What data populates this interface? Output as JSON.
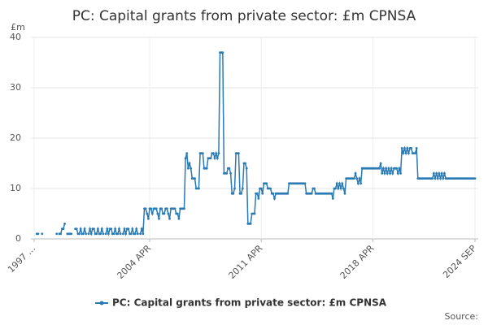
{
  "chart_data": {
    "type": "line",
    "title": "PC: Capital grants from private sector: £m CPNSA",
    "y_unit": "£m",
    "source": "Source:",
    "categories": [
      "1997 …",
      null,
      null,
      null,
      null,
      null,
      null,
      null,
      null,
      null,
      null,
      null,
      null,
      null,
      null,
      null,
      null,
      null,
      null,
      null,
      null,
      null,
      null,
      null,
      null,
      null,
      null,
      null,
      null,
      null,
      null,
      null,
      null,
      null,
      null,
      null,
      null,
      null,
      null,
      null,
      null,
      null,
      null,
      null,
      null,
      null,
      null,
      null,
      null,
      null,
      null,
      null,
      null,
      null,
      null,
      null,
      null,
      null,
      null,
      null,
      null,
      null,
      null,
      null,
      null,
      null,
      null,
      null,
      null,
      null,
      null,
      null,
      null,
      null,
      null,
      null,
      null,
      null,
      null,
      null,
      null,
      null,
      null,
      null,
      null,
      null,
      null,
      "2004 APR",
      null,
      null,
      null,
      null,
      null,
      null,
      null,
      null,
      null,
      null,
      null,
      null,
      null,
      null,
      null,
      null,
      null,
      null,
      null,
      null,
      null,
      null,
      null,
      null,
      null,
      null,
      null,
      null,
      null,
      null,
      null,
      null,
      null,
      null,
      null,
      null,
      null,
      null,
      null,
      null,
      null,
      null,
      null,
      null,
      null,
      null,
      null,
      null,
      null,
      null,
      null,
      null,
      null,
      null,
      null,
      null,
      null,
      null,
      null,
      null,
      null,
      null,
      null,
      null,
      null,
      null,
      null,
      null,
      null,
      null,
      null,
      null,
      null,
      null,
      null,
      null,
      null,
      null,
      null,
      null,
      null,
      null,
      null,
      "2011 APR",
      null,
      null,
      null,
      null,
      null,
      null,
      null,
      null,
      null,
      null,
      null,
      null,
      null,
      null,
      null,
      null,
      null,
      null,
      null,
      null,
      null,
      null,
      null,
      null,
      null,
      null,
      null,
      null,
      null,
      null,
      null,
      null,
      null,
      null,
      null,
      null,
      null,
      null,
      null,
      null,
      null,
      null,
      null,
      null,
      null,
      null,
      null,
      null,
      null,
      null,
      null,
      null,
      null,
      null,
      null,
      null,
      null,
      null,
      null,
      null,
      null,
      null,
      null,
      null,
      null,
      null,
      null,
      null,
      null,
      null,
      null,
      null,
      null,
      null,
      null,
      null,
      null,
      null,
      null,
      null,
      null,
      null,
      null,
      "2018 APR",
      null,
      null,
      null,
      null,
      null,
      null,
      null,
      null,
      null,
      null,
      null,
      null,
      null,
      null,
      null,
      null,
      null,
      null,
      null,
      null,
      null,
      null,
      null,
      null,
      null,
      null,
      null,
      null,
      null,
      null,
      null,
      null,
      null,
      null,
      null,
      null,
      null,
      null,
      null,
      null,
      null,
      null,
      null,
      null,
      null,
      null,
      null,
      null,
      null,
      null,
      null,
      null,
      null,
      null,
      null,
      null,
      null,
      null,
      null,
      null,
      null,
      null,
      null,
      null,
      null,
      null,
      null,
      null,
      null,
      null,
      null,
      null,
      null,
      null,
      null,
      null,
      "2024 SEP"
    ],
    "series": [
      {
        "name": "PC: Capital grants from private sector: £m CPNSA",
        "color": "#2a7ab4",
        "values": [
          null,
          null,
          1,
          1,
          null,
          null,
          1,
          null,
          null,
          null,
          null,
          null,
          null,
          null,
          null,
          null,
          null,
          1,
          null,
          1,
          1,
          2,
          2,
          3,
          null,
          1,
          1,
          1,
          1,
          null,
          null,
          2,
          2,
          1,
          1,
          2,
          1,
          1,
          2,
          1,
          null,
          1,
          2,
          1,
          2,
          2,
          1,
          1,
          2,
          1,
          1,
          2,
          1,
          null,
          1,
          2,
          1,
          2,
          2,
          1,
          1,
          2,
          1,
          1,
          2,
          1,
          null,
          1,
          2,
          1,
          2,
          2,
          1,
          1,
          2,
          1,
          1,
          2,
          1,
          null,
          1,
          2,
          1,
          6,
          6,
          5,
          4,
          6,
          6,
          5,
          6,
          6,
          6,
          5,
          4,
          6,
          6,
          5,
          5,
          6,
          6,
          5,
          4,
          6,
          6,
          6,
          6,
          5,
          5,
          4,
          6,
          6,
          6,
          6,
          16,
          17,
          14,
          15,
          14,
          12,
          12,
          12,
          10,
          10,
          10,
          17,
          17,
          17,
          14,
          14,
          14,
          16,
          16,
          16,
          17,
          17,
          16,
          17,
          16,
          17,
          37,
          37,
          37,
          13,
          13,
          13,
          14,
          14,
          13,
          9,
          9,
          10,
          17,
          17,
          17,
          9,
          9,
          10,
          15,
          15,
          14,
          3,
          3,
          3,
          5,
          5,
          5,
          9,
          9,
          8,
          10,
          10,
          9,
          11,
          11,
          11,
          10,
          10,
          10,
          9,
          9,
          8,
          9,
          9,
          9,
          9,
          9,
          9,
          9,
          9,
          9,
          9,
          11,
          11,
          11,
          11,
          11,
          11,
          11,
          11,
          11,
          11,
          11,
          11,
          11,
          9,
          9,
          9,
          9,
          9,
          10,
          10,
          9,
          9,
          9,
          9,
          9,
          9,
          9,
          9,
          9,
          9,
          9,
          9,
          9,
          8,
          10,
          10,
          11,
          10,
          11,
          10,
          11,
          10,
          9,
          12,
          12,
          12,
          12,
          12,
          12,
          12,
          13,
          12,
          11,
          12,
          11,
          14,
          14,
          14,
          14,
          14,
          14,
          14,
          14,
          14,
          14,
          14,
          14,
          14,
          14,
          15,
          13,
          14,
          13,
          14,
          13,
          14,
          13,
          14,
          13,
          14,
          14,
          14,
          13,
          14,
          13,
          18,
          17,
          18,
          17,
          18,
          17,
          18,
          18,
          17,
          17,
          17,
          18,
          12,
          12,
          12,
          12,
          12,
          12,
          12,
          12,
          12,
          12,
          12,
          12,
          13,
          12,
          13,
          12,
          13,
          12,
          13,
          12,
          13,
          12,
          12,
          12,
          12,
          12,
          12,
          12,
          12,
          12,
          12,
          12,
          12,
          12,
          12,
          12,
          12,
          12,
          12,
          12,
          12,
          12,
          12,
          12
        ]
      }
    ],
    "ylim": [
      0,
      40
    ],
    "yticks": [
      0,
      10,
      20,
      30,
      40
    ],
    "grid": true,
    "legend": "bottom"
  }
}
